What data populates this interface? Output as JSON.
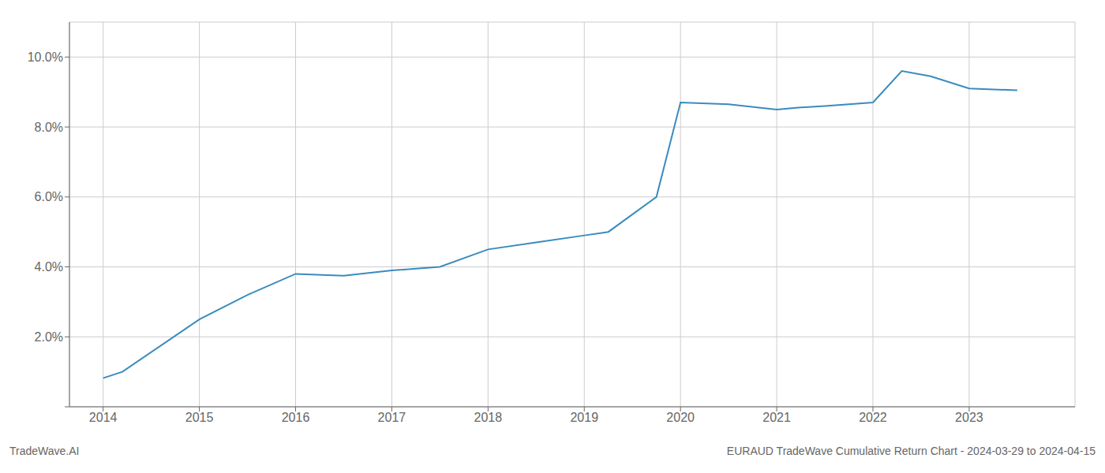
{
  "chart_data": {
    "type": "line",
    "title": "EURAUD TradeWave Cumulative Return Chart - 2024-03-29 to 2024-04-15",
    "annotations": [
      "TradeWave.AI"
    ],
    "x": [
      2014.0,
      2014.2,
      2015.0,
      2015.5,
      2016.0,
      2016.5,
      2017.0,
      2017.5,
      2018.0,
      2018.5,
      2019.0,
      2019.25,
      2019.75,
      2020.0,
      2020.5,
      2021.0,
      2021.2,
      2021.5,
      2022.0,
      2022.3,
      2022.6,
      2023.0,
      2023.5
    ],
    "values": [
      0.0082,
      0.01,
      0.025,
      0.032,
      0.038,
      0.0375,
      0.039,
      0.04,
      0.045,
      0.047,
      0.049,
      0.05,
      0.06,
      0.087,
      0.0865,
      0.085,
      0.0855,
      0.086,
      0.087,
      0.096,
      0.0945,
      0.091,
      0.0905
    ],
    "color": "#3a8bbf",
    "xlim": [
      2013.65,
      2024.1
    ],
    "ylim": [
      0.0,
      0.11
    ],
    "xticks": [
      2014,
      2015,
      2016,
      2017,
      2018,
      2019,
      2020,
      2021,
      2022,
      2023
    ],
    "yticks": [
      {
        "value": 0.0,
        "label": ""
      },
      {
        "value": 0.02,
        "label": "2.0%"
      },
      {
        "value": 0.04,
        "label": "4.0%"
      },
      {
        "value": 0.06,
        "label": "6.0%"
      },
      {
        "value": 0.08,
        "label": "8.0%"
      },
      {
        "value": 0.1,
        "label": "10.0%"
      }
    ],
    "grid": true
  }
}
